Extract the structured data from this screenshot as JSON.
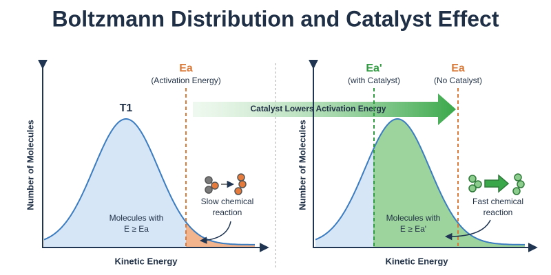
{
  "title": "Boltzmann Distribution and Catalyst Effect",
  "left_panel": {
    "y_label": "Number of Molecules",
    "x_label": "Kinetic Energy",
    "curve_label": "T1",
    "threshold": {
      "label": "Ea",
      "sublabel": "(Activation Energy)"
    },
    "area_label": [
      "Molecules with",
      "E ≥ Ea"
    ],
    "reaction_label": [
      "Slow chemical",
      "reaction"
    ]
  },
  "arrow_label": "Catalyst Lowers Activation Energy",
  "right_panel": {
    "y_label": "Number of Molecules",
    "x_label": "Kinetic Energy",
    "thresholds": [
      {
        "label": "Ea'",
        "sublabel": "(with Catalyst)"
      },
      {
        "label": "Ea",
        "sublabel": "(No Catalyst)"
      }
    ],
    "area_label": [
      "Molecules with",
      "E ≥ Ea'"
    ],
    "reaction_label": [
      "Fast chemical",
      "reaction"
    ]
  }
}
